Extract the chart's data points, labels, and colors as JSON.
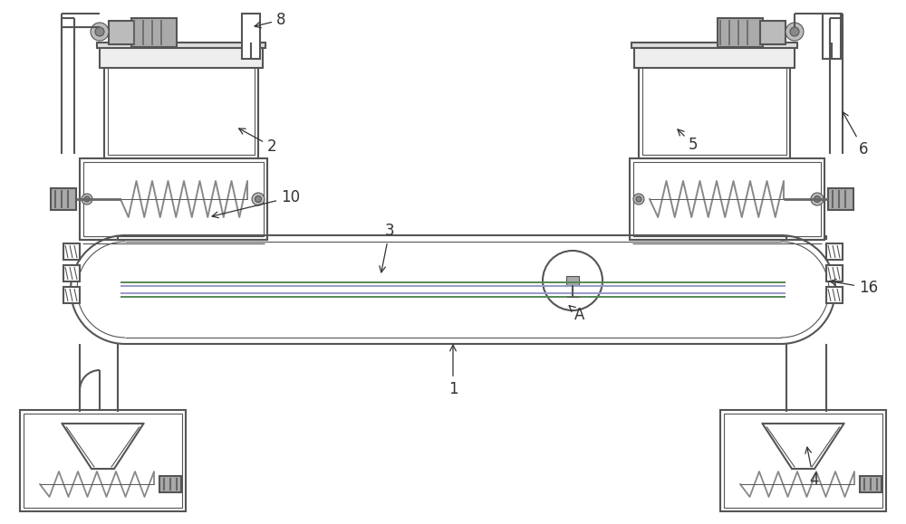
{
  "bg_color": "#ffffff",
  "lc": "#555555",
  "lw": 1.5,
  "tlw": 0.8,
  "sc": "#888888",
  "purple": "#9999cc",
  "green": "#558855",
  "gray_fill": "#cccccc",
  "label_color": "#333333",
  "fs": 12
}
